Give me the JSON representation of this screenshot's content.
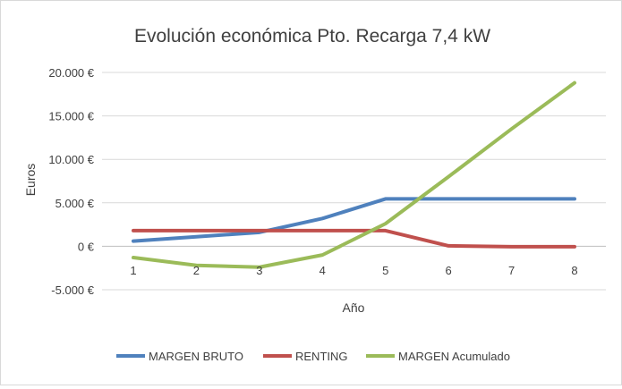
{
  "chart_data": {
    "type": "line",
    "title": "Evolución económica Pto. Recarga 7,4 kW",
    "xlabel": "Año",
    "ylabel": "Euros",
    "x": [
      1,
      2,
      3,
      4,
      5,
      6,
      7,
      8
    ],
    "x_tick_labels": [
      "1",
      "2",
      "3",
      "4",
      "5",
      "6",
      "7",
      "8"
    ],
    "ylim": [
      -5000,
      20000
    ],
    "y_ticks": [
      -5000,
      0,
      5000,
      10000,
      15000,
      20000
    ],
    "y_tick_labels": [
      "-5.000 €",
      "0 €",
      "5.000 €",
      "10.000 €",
      "15.000 €",
      "20.000 €"
    ],
    "grid": "horizontal",
    "legend_position": "bottom",
    "series": [
      {
        "name": "MARGEN BRUTO",
        "color": "#4f81bd",
        "values": [
          600,
          1100,
          1600,
          3200,
          5450,
          5450,
          5450,
          5450
        ]
      },
      {
        "name": "RENTING",
        "color": "#c0504d",
        "values": [
          1800,
          1800,
          1800,
          1800,
          1800,
          50,
          -50,
          -50
        ]
      },
      {
        "name": "MARGEN Acumulado",
        "color": "#9bbb59",
        "values": [
          -1300,
          -2200,
          -2400,
          -1000,
          2600,
          8000,
          13500,
          18800
        ]
      }
    ]
  }
}
